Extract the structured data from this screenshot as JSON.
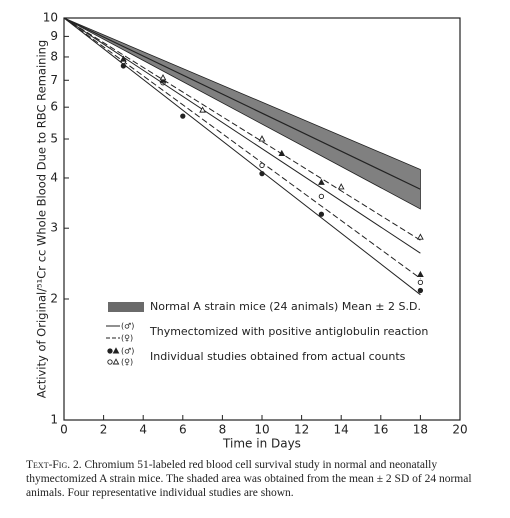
{
  "chart_data": {
    "type": "line",
    "y_label": "Activity of Original/⁵¹Cr cc Whole Blood Due to RBC Remaining",
    "x_label": "Time in Days",
    "xlim": [
      0,
      20
    ],
    "xticks": [
      0,
      2,
      4,
      6,
      8,
      10,
      12,
      14,
      16,
      18,
      20
    ],
    "ylim": [
      1,
      10
    ],
    "yticks": [
      1,
      2,
      3,
      4,
      5,
      6,
      7,
      8,
      9,
      10
    ],
    "y_log": true,
    "color": "#222222",
    "band": {
      "x": [
        0,
        18
      ],
      "upper": [
        10,
        4.2
      ],
      "lower": [
        10,
        3.35
      ],
      "mean": [
        10,
        3.75
      ],
      "fill": "#6a6a6a"
    },
    "series": [
      {
        "x": [
          0,
          18
        ],
        "values": [
          10,
          2.05
        ],
        "dashed": false,
        "marker": "filled-circle",
        "point_x": [
          3,
          6,
          10,
          13,
          18
        ],
        "point_values": [
          7.6,
          5.7,
          4.1,
          3.25,
          2.1
        ]
      },
      {
        "x": [
          0,
          18
        ],
        "values": [
          10,
          2.25
        ],
        "dashed": true,
        "marker": "open-circle",
        "point_x": [
          3,
          5,
          10,
          13,
          18
        ],
        "point_values": [
          7.8,
          6.9,
          4.3,
          3.6,
          2.2
        ]
      },
      {
        "x": [
          0,
          18
        ],
        "values": [
          10,
          2.6
        ],
        "dashed": false,
        "marker": "filled-triangle",
        "point_x": [
          3,
          5,
          10,
          11,
          13,
          18
        ],
        "point_values": [
          7.9,
          7.0,
          5.0,
          4.6,
          3.9,
          2.3
        ]
      },
      {
        "x": [
          0,
          18
        ],
        "values": [
          10,
          2.8
        ],
        "dashed": true,
        "marker": "open-triangle",
        "point_x": [
          5,
          7,
          10,
          14,
          18
        ],
        "point_values": [
          7.1,
          5.9,
          5.0,
          3.8,
          2.85
        ]
      }
    ],
    "legend": {
      "band_label": "Normal A strain mice (24 animals) Mean ± 2 S.D.",
      "male": "(♂)",
      "female": "(♀)",
      "line_label": "Thymectomized with positive antiglobulin reaction",
      "point_label": "Individual studies obtained from actual counts"
    }
  },
  "caption": {
    "figure": "Text-Fig. 2.",
    "text": "Chromium 51-labeled red blood cell survival study in normal and neonatally thymectomized A strain mice. The shaded area was obtained from the mean ± 2 SD of 24 normal animals. Four representative individual studies are shown."
  }
}
